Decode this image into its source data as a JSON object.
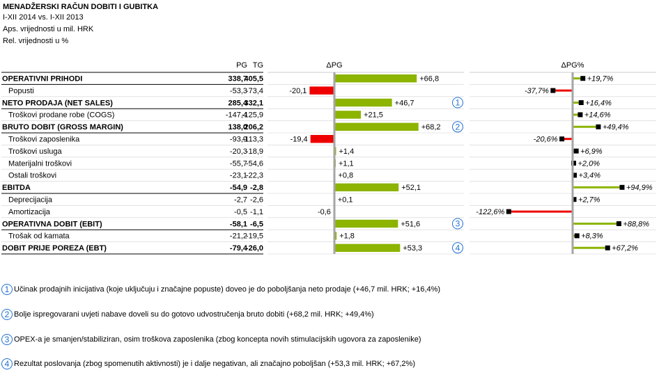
{
  "header": {
    "title": "MENADŽERSKI RAČUN DOBITI I GUBITKA",
    "period": "I-XII 2014 vs. I-XII 2013",
    "abs_note": "Aps. vrijednosti u mil. HRK",
    "rel_note": "Rel. vrijednosti u %"
  },
  "chart_data": {
    "type": "table",
    "columns": {
      "pg": "PG",
      "tg": "TG",
      "delta": "ΔPG",
      "delta_pct": "ΔPG%"
    },
    "rows": [
      {
        "label": "OPERATIVNI PRIHODI",
        "bold": true,
        "indent": false,
        "pg": "338,7",
        "tg": "405,5",
        "delta": 66.8,
        "delta_label": "+66,8",
        "pct": 19.7,
        "pct_label": "+19,7%",
        "badge": ""
      },
      {
        "label": "Popusti",
        "bold": false,
        "indent": true,
        "pg": "-53,3",
        "tg": "-73,4",
        "delta": -20.1,
        "delta_label": "-20,1",
        "pct": -37.7,
        "pct_label": "-37,7%",
        "badge": ""
      },
      {
        "label": "NETO PRODAJA (NET SALES)",
        "bold": true,
        "indent": false,
        "pg": "285,4",
        "tg": "332,1",
        "delta": 46.7,
        "delta_label": "+46,7",
        "pct": 16.4,
        "pct_label": "+16,4%",
        "badge": "1"
      },
      {
        "label": "Troškovi prodane robe (COGS)",
        "bold": false,
        "indent": true,
        "pg": "-147,4",
        "tg": "-125,9",
        "delta": 21.5,
        "delta_label": "+21,5",
        "pct": 14.6,
        "pct_label": "+14,6%",
        "badge": ""
      },
      {
        "label": "BRUTO DOBIT (GROSS MARGIN)",
        "bold": true,
        "indent": false,
        "pg": "138,0",
        "tg": "206,2",
        "delta": 68.2,
        "delta_label": "+68,2",
        "pct": 49.4,
        "pct_label": "+49,4%",
        "badge": "2"
      },
      {
        "label": "Troškovi zaposlenika",
        "bold": false,
        "indent": true,
        "pg": "-93,9",
        "tg": "-113,3",
        "delta": -19.4,
        "delta_label": "-19,4",
        "pct": -20.6,
        "pct_label": "-20,6%",
        "badge": ""
      },
      {
        "label": "Troškovi usluga",
        "bold": false,
        "indent": true,
        "pg": "-20,3",
        "tg": "-18,9",
        "delta": 1.4,
        "delta_label": "+1,4",
        "pct": 6.9,
        "pct_label": "+6,9%",
        "badge": ""
      },
      {
        "label": "Materijalni troškovi",
        "bold": false,
        "indent": true,
        "pg": "-55,7",
        "tg": "-54,6",
        "delta": 1.1,
        "delta_label": "+1,1",
        "pct": 2.0,
        "pct_label": "+2,0%",
        "badge": ""
      },
      {
        "label": "Ostali troškovi",
        "bold": false,
        "indent": true,
        "pg": "-23,1",
        "tg": "-22,3",
        "delta": 0.8,
        "delta_label": "+0,8",
        "pct": 3.4,
        "pct_label": "+3,4%",
        "badge": ""
      },
      {
        "label": "EBITDA",
        "bold": true,
        "indent": false,
        "pg": "-54,9",
        "tg": "-2,8",
        "delta": 52.1,
        "delta_label": "+52,1",
        "pct": 94.9,
        "pct_label": "+94,9%",
        "badge": ""
      },
      {
        "label": "Deprecijacija",
        "bold": false,
        "indent": true,
        "pg": "-2,7",
        "tg": "-2,6",
        "delta": 0.1,
        "delta_label": "+0,1",
        "pct": 2.7,
        "pct_label": "+2,7%",
        "badge": ""
      },
      {
        "label": "Amortizacija",
        "bold": false,
        "indent": true,
        "pg": "-0,5",
        "tg": "-1,1",
        "delta": -0.6,
        "delta_label": "-0,6",
        "pct": -122.6,
        "pct_label": "-122,6%",
        "badge": ""
      },
      {
        "label": "OPERATIVNA DOBIT (EBIT)",
        "bold": true,
        "indent": false,
        "pg": "-58,1",
        "tg": "-6,5",
        "delta": 51.6,
        "delta_label": "+51,6",
        "pct": 88.8,
        "pct_label": "+88,8%",
        "badge": "3"
      },
      {
        "label": "Trošak od kamata",
        "bold": false,
        "indent": true,
        "pg": "-21,2",
        "tg": "-19,5",
        "delta": 1.8,
        "delta_label": "+1,8",
        "pct": 8.3,
        "pct_label": "+8,3%",
        "badge": ""
      },
      {
        "label": "DOBIT PRIJE POREZA (EBT)",
        "bold": true,
        "indent": false,
        "pg": "-79,4",
        "tg": "-26,0",
        "delta": 53.3,
        "delta_label": "+53,3",
        "pct": 67.2,
        "pct_label": "+67,2%",
        "badge": "4"
      }
    ],
    "colors": {
      "positive": "#8cb400",
      "negative": "#ee0000",
      "axis": "#a6a6a6",
      "marker": "#000000",
      "badge": "#1f6fd0"
    }
  },
  "notes": [
    {
      "num": "1",
      "text": "Učinak prodajnih inicijativa (koje uključuju i značajne popuste) doveo je do poboljšanja neto prodaje (+46,7 mil. HRK; +16,4%)"
    },
    {
      "num": "2",
      "text": "Bolje ispregovarani uvjeti nabave doveli su do gotovo udvostručenja bruto dobiti (+68,2 mil. HRK; +49,4%)"
    },
    {
      "num": "3",
      "text": "OPEX-a je smanjen/stabiliziran, osim troškova zaposlenika (zbog koncepta novih stimulacijskih ugovora za zaposlenike)"
    },
    {
      "num": "4",
      "text": "Rezultat poslovanja (zbog spomenutih aktivnosti) je i dalje negativan, ali značajno poboljšan (+53,3 mil. HRK; +67,2%)"
    }
  ]
}
